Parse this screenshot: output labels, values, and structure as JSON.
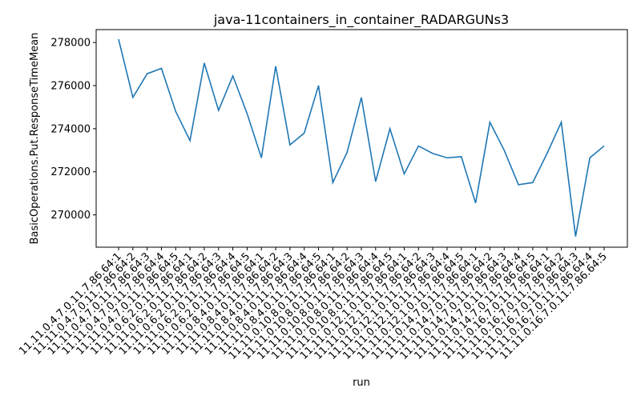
{
  "chart_data": {
    "type": "line",
    "title": "java-11containers_in_container_RADARGUNs3",
    "xlabel": "run",
    "ylabel": "BasicOperations.Put.ResponseTimeMean",
    "ylim": [
      268500,
      278600
    ],
    "yticks": [
      270000,
      272000,
      274000,
      276000,
      278000
    ],
    "ytick_labels": [
      "270000",
      "272000",
      "274000",
      "276000",
      "278000"
    ],
    "grid": false,
    "series_color": "#1f77b4",
    "categories": [
      "11.11.0.4.7.0.11.7.86.64:1",
      "11.11.0.4.7.0.11.7.86.64:2",
      "11.11.0.4.7.0.11.7.86.64:3",
      "11.11.0.4.7.0.11.7.86.64:4",
      "11.11.0.4.7.0.11.7.86.64:5",
      "11.11.0.6.2.0.11.7.86.64:1",
      "11.11.0.6.2.0.11.7.86.64:2",
      "11.11.0.6.2.0.11.7.86.64:3",
      "11.11.0.6.2.0.11.7.86.64:4",
      "11.11.0.6.2.0.11.7.86.64:5",
      "11.11.0.8.4.0.11.7.86.64:1",
      "11.11.0.8.4.0.11.7.86.64:2",
      "11.11.0.8.4.0.11.7.86.64:3",
      "11.11.0.8.4.0.11.7.86.64:4",
      "11.11.0.8.4.0.11.7.86.64:5",
      "11.11.0.10.8.0.11.7.86.64:1",
      "11.11.0.10.8.0.11.7.86.64:2",
      "11.11.0.10.8.0.11.7.86.64:3",
      "11.11.0.10.8.0.11.7.86.64:4",
      "11.11.0.10.8.0.11.7.86.64:5",
      "11.11.0.12.1.0.11.7.86.64:1",
      "11.11.0.12.1.0.11.7.86.64:2",
      "11.11.0.12.1.0.11.7.86.64:3",
      "11.11.0.12.1.0.11.7.86.64:4",
      "11.11.0.12.1.0.11.7.86.64:5",
      "11.11.0.14.7.0.11.7.86.64:1",
      "11.11.0.14.7.0.11.7.86.64:2",
      "11.11.0.14.7.0.11.7.86.64:3",
      "11.11.0.14.7.0.11.7.86.64:4",
      "11.11.0.14.7.0.11.7.86.64:5",
      "11.11.0.16.7.0.11.7.86.64:1",
      "11.11.0.16.7.0.11.7.86.64:2",
      "11.11.0.16.7.0.11.7.86.64:3",
      "11.11.0.16.7.0.11.7.86.64:4",
      "11.11.0.16.7.0.11.7.86.64:5"
    ],
    "values": [
      278150,
      275450,
      276550,
      276800,
      274800,
      273450,
      277050,
      274850,
      276450,
      274700,
      272650,
      276900,
      273250,
      273800,
      276000,
      271500,
      272900,
      275450,
      271550,
      274000,
      271900,
      273200,
      272850,
      272650,
      272700,
      270550,
      274300,
      273000,
      271400,
      271500,
      272850,
      274300,
      269000,
      272650,
      273200
    ]
  }
}
